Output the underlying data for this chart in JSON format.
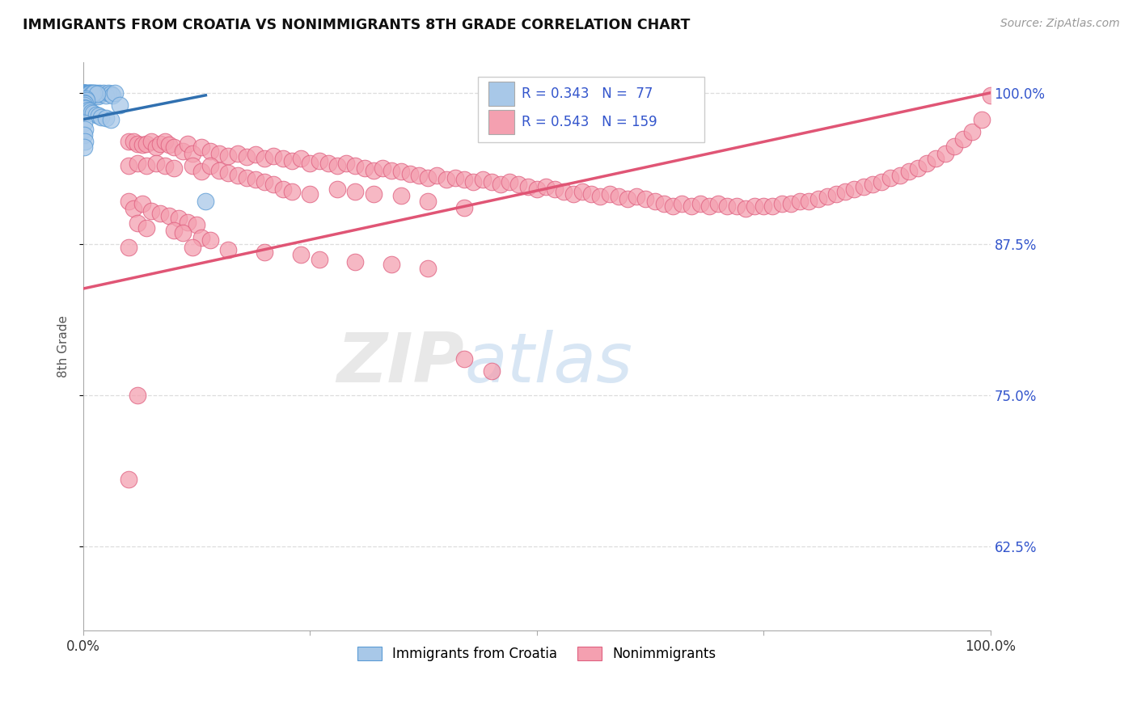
{
  "title": "IMMIGRANTS FROM CROATIA VS NONIMMIGRANTS 8TH GRADE CORRELATION CHART",
  "source_text": "Source: ZipAtlas.com",
  "ylabel": "8th Grade",
  "xlim": [
    0.0,
    1.0
  ],
  "ylim": [
    0.555,
    1.025
  ],
  "yticks": [
    0.625,
    0.75,
    0.875,
    1.0
  ],
  "ytick_labels": [
    "62.5%",
    "75.0%",
    "87.5%",
    "100.0%"
  ],
  "xticks": [
    0.0,
    0.25,
    0.5,
    0.75,
    1.0
  ],
  "xtick_labels": [
    "0.0%",
    "",
    "",
    "",
    "100.0%"
  ],
  "legend_blue_label": "Immigrants from Croatia",
  "legend_pink_label": "Nonimmigrants",
  "R_blue": 0.343,
  "N_blue": 77,
  "R_pink": 0.543,
  "N_pink": 159,
  "blue_color": "#a8c8e8",
  "blue_edge_color": "#5b9bd5",
  "pink_color": "#f4a0b0",
  "pink_edge_color": "#e06080",
  "trend_blue_color": "#3070b0",
  "trend_pink_color": "#e05575",
  "tick_color_right": "#3355cc",
  "grid_color": "#dddddd",
  "blue_scatter_x": [
    0.001,
    0.001,
    0.001,
    0.001,
    0.001,
    0.002,
    0.002,
    0.002,
    0.002,
    0.003,
    0.003,
    0.003,
    0.003,
    0.004,
    0.004,
    0.005,
    0.005,
    0.006,
    0.006,
    0.007,
    0.007,
    0.008,
    0.008,
    0.009,
    0.01,
    0.01,
    0.011,
    0.012,
    0.013,
    0.014,
    0.015,
    0.016,
    0.018,
    0.02,
    0.022,
    0.025,
    0.028,
    0.03,
    0.032,
    0.035,
    0.001,
    0.001,
    0.002,
    0.002,
    0.003,
    0.004,
    0.005,
    0.006,
    0.008,
    0.01,
    0.012,
    0.015,
    0.001,
    0.002,
    0.003,
    0.004,
    0.001,
    0.002,
    0.001,
    0.001,
    0.003,
    0.005,
    0.007,
    0.009,
    0.011,
    0.014,
    0.017,
    0.02,
    0.025,
    0.03,
    0.001,
    0.002,
    0.001,
    0.002,
    0.001,
    0.04,
    0.135
  ],
  "blue_scatter_y": [
    1.0,
    1.0,
    1.0,
    1.0,
    0.998,
    1.0,
    1.0,
    0.999,
    0.998,
    1.0,
    0.999,
    0.998,
    0.997,
    1.0,
    0.999,
    1.0,
    0.999,
    1.0,
    0.999,
    1.0,
    0.998,
    1.0,
    0.999,
    1.0,
    1.0,
    0.999,
    0.998,
    1.0,
    0.999,
    1.0,
    0.998,
    0.997,
    1.0,
    0.999,
    1.0,
    0.998,
    1.0,
    0.999,
    0.998,
    1.0,
    0.996,
    0.995,
    0.997,
    0.996,
    0.996,
    0.997,
    0.998,
    0.999,
    0.998,
    0.999,
    1.0,
    0.999,
    0.994,
    0.993,
    0.995,
    0.994,
    0.992,
    0.991,
    0.99,
    0.988,
    0.987,
    0.986,
    0.985,
    0.984,
    0.983,
    0.982,
    0.981,
    0.98,
    0.979,
    0.978,
    0.975,
    0.97,
    0.965,
    0.96,
    0.955,
    0.99,
    0.91
  ],
  "pink_scatter_x": [
    0.05,
    0.055,
    0.06,
    0.065,
    0.07,
    0.075,
    0.08,
    0.085,
    0.09,
    0.095,
    0.1,
    0.11,
    0.115,
    0.12,
    0.13,
    0.14,
    0.15,
    0.16,
    0.17,
    0.18,
    0.19,
    0.2,
    0.21,
    0.22,
    0.23,
    0.24,
    0.25,
    0.26,
    0.27,
    0.28,
    0.29,
    0.3,
    0.31,
    0.32,
    0.33,
    0.34,
    0.35,
    0.36,
    0.37,
    0.38,
    0.39,
    0.4,
    0.41,
    0.42,
    0.43,
    0.44,
    0.45,
    0.46,
    0.47,
    0.48,
    0.49,
    0.5,
    0.51,
    0.52,
    0.53,
    0.54,
    0.55,
    0.56,
    0.57,
    0.58,
    0.59,
    0.6,
    0.61,
    0.62,
    0.63,
    0.64,
    0.65,
    0.66,
    0.67,
    0.68,
    0.69,
    0.7,
    0.71,
    0.72,
    0.73,
    0.74,
    0.75,
    0.76,
    0.77,
    0.78,
    0.79,
    0.8,
    0.81,
    0.82,
    0.83,
    0.84,
    0.85,
    0.86,
    0.87,
    0.88,
    0.89,
    0.9,
    0.91,
    0.92,
    0.93,
    0.94,
    0.95,
    0.96,
    0.97,
    0.98,
    0.99,
    1.0,
    0.05,
    0.06,
    0.07,
    0.08,
    0.09,
    0.1,
    0.12,
    0.13,
    0.14,
    0.15,
    0.16,
    0.17,
    0.18,
    0.19,
    0.2,
    0.21,
    0.22,
    0.23,
    0.25,
    0.28,
    0.3,
    0.32,
    0.35,
    0.38,
    0.42,
    0.05,
    0.055,
    0.065,
    0.075,
    0.085,
    0.095,
    0.105,
    0.115,
    0.125,
    0.06,
    0.07,
    0.1,
    0.11,
    0.13,
    0.14,
    0.42,
    0.45,
    0.05,
    0.12,
    0.16,
    0.2,
    0.24,
    0.26,
    0.3,
    0.34,
    0.38,
    0.06,
    0.05
  ],
  "pink_scatter_y": [
    0.96,
    0.96,
    0.958,
    0.957,
    0.958,
    0.96,
    0.955,
    0.958,
    0.96,
    0.957,
    0.955,
    0.952,
    0.958,
    0.95,
    0.955,
    0.952,
    0.95,
    0.948,
    0.95,
    0.947,
    0.949,
    0.946,
    0.948,
    0.946,
    0.944,
    0.946,
    0.942,
    0.944,
    0.942,
    0.94,
    0.942,
    0.94,
    0.938,
    0.936,
    0.938,
    0.936,
    0.935,
    0.933,
    0.932,
    0.93,
    0.932,
    0.928,
    0.93,
    0.928,
    0.926,
    0.928,
    0.926,
    0.924,
    0.926,
    0.924,
    0.922,
    0.92,
    0.922,
    0.92,
    0.918,
    0.916,
    0.918,
    0.916,
    0.914,
    0.916,
    0.914,
    0.912,
    0.914,
    0.912,
    0.91,
    0.908,
    0.906,
    0.908,
    0.906,
    0.908,
    0.906,
    0.908,
    0.906,
    0.906,
    0.904,
    0.906,
    0.906,
    0.906,
    0.908,
    0.908,
    0.91,
    0.91,
    0.912,
    0.914,
    0.916,
    0.918,
    0.92,
    0.922,
    0.924,
    0.926,
    0.93,
    0.932,
    0.935,
    0.938,
    0.942,
    0.946,
    0.95,
    0.956,
    0.962,
    0.968,
    0.978,
    0.998,
    0.94,
    0.942,
    0.94,
    0.942,
    0.94,
    0.938,
    0.94,
    0.935,
    0.94,
    0.936,
    0.934,
    0.932,
    0.93,
    0.928,
    0.926,
    0.924,
    0.92,
    0.918,
    0.916,
    0.92,
    0.918,
    0.916,
    0.915,
    0.91,
    0.905,
    0.91,
    0.904,
    0.908,
    0.902,
    0.9,
    0.898,
    0.896,
    0.893,
    0.891,
    0.892,
    0.888,
    0.886,
    0.884,
    0.88,
    0.878,
    0.78,
    0.77,
    0.872,
    0.872,
    0.87,
    0.868,
    0.866,
    0.862,
    0.86,
    0.858,
    0.855,
    0.75,
    0.68
  ],
  "blue_trend_x": [
    0.0,
    0.135
  ],
  "blue_trend_y": [
    0.978,
    0.998
  ],
  "pink_trend_x": [
    0.0,
    1.0
  ],
  "pink_trend_y": [
    0.838,
    1.0
  ]
}
